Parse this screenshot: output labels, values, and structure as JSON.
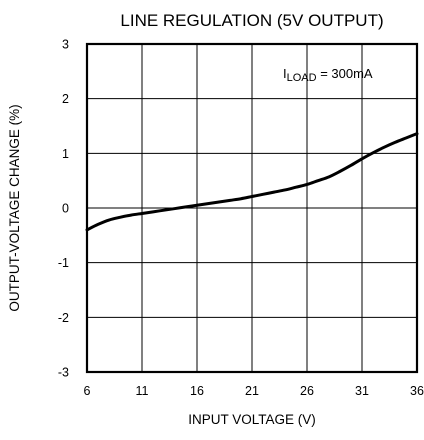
{
  "chart_data": {
    "type": "line",
    "title": "LINE REGULATION (5V OUTPUT)",
    "xlabel": "INPUT VOLTAGE (V)",
    "ylabel": "OUTPUT-VOLTAGE CHANGE (%)",
    "xlim": [
      6,
      36
    ],
    "ylim": [
      -3,
      3
    ],
    "xticks": [
      6,
      11,
      16,
      21,
      26,
      31,
      36
    ],
    "yticks": [
      3,
      2,
      1,
      0,
      -1,
      -2,
      -3
    ],
    "xtick_labels": [
      "6",
      "11",
      "16",
      "21",
      "26",
      "31",
      "36"
    ],
    "ytick_labels": [
      "3",
      "2",
      "1",
      "0",
      "-1",
      "-2",
      "-3"
    ],
    "grid": true,
    "annotation": {
      "prefix": "I",
      "subscript": "LOAD",
      "suffix": " = 300mA"
    },
    "series": [
      {
        "x": [
          6,
          7,
          8,
          9,
          10,
          11,
          12,
          13,
          14,
          15,
          16,
          17,
          18,
          19,
          20,
          21,
          22,
          23,
          24,
          25,
          26,
          27,
          28,
          29,
          30,
          31,
          32,
          33,
          34,
          35,
          36
        ],
        "y": [
          -0.4,
          -0.3,
          -0.22,
          -0.17,
          -0.13,
          -0.1,
          -0.07,
          -0.04,
          -0.01,
          0.02,
          0.05,
          0.08,
          0.11,
          0.14,
          0.17,
          0.21,
          0.25,
          0.29,
          0.33,
          0.38,
          0.43,
          0.5,
          0.57,
          0.67,
          0.78,
          0.9,
          1.01,
          1.11,
          1.2,
          1.28,
          1.36
        ]
      }
    ]
  }
}
